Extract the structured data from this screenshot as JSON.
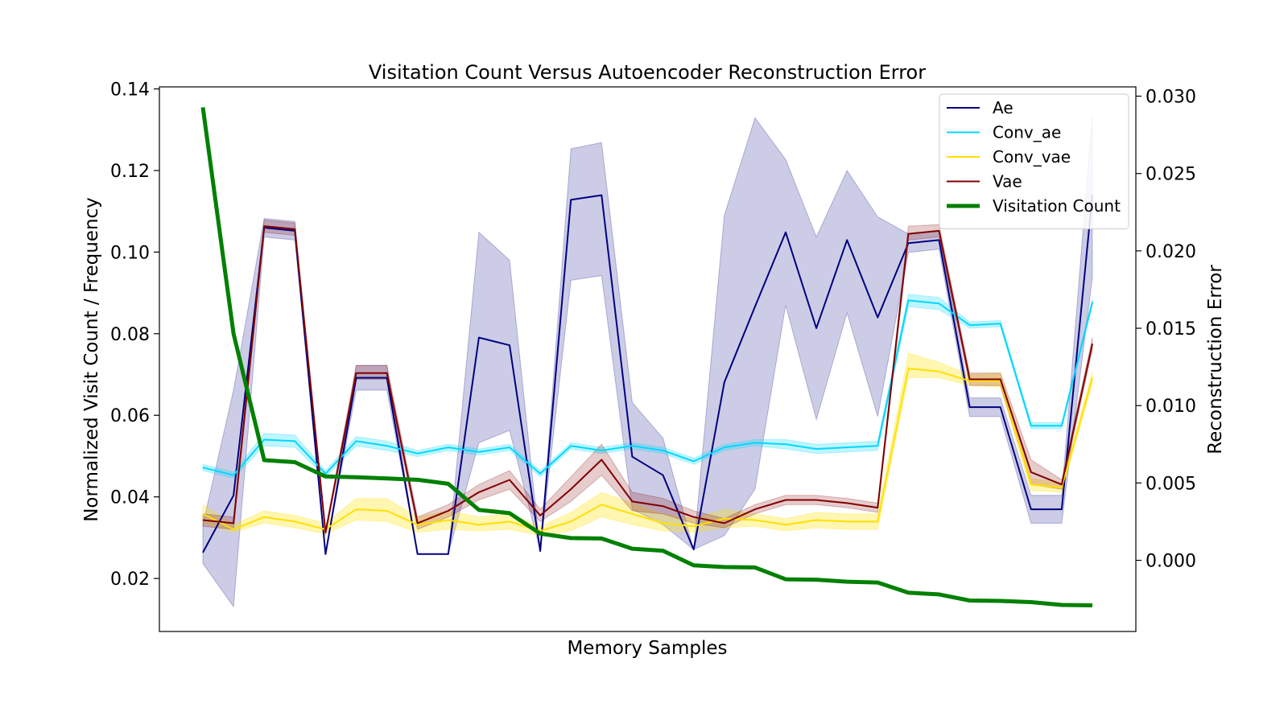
{
  "chart_data": {
    "type": "line",
    "title": "Visitation Count Versus Autoencoder Reconstruction Error",
    "xlabel": "Memory Samples",
    "ylabel_left": "Normalized Visit Count / Frequency",
    "ylabel_right": "Reconstruction Error",
    "ylabel_left_color": "#008000",
    "x": [
      1,
      2,
      3,
      4,
      5,
      6,
      7,
      8,
      9,
      10,
      11,
      12,
      13,
      14,
      15,
      16,
      17,
      18,
      19,
      20,
      21,
      22,
      23,
      24,
      25,
      26,
      27,
      28,
      29,
      30
    ],
    "ylim_left": [
      0.007,
      0.1405
    ],
    "ylim_right": [
      -0.0046,
      0.0306
    ],
    "yticks_left": [
      0.02,
      0.04,
      0.06,
      0.08,
      0.1,
      0.12,
      0.14
    ],
    "yticks_left_labels": [
      "0.02",
      "0.04",
      "0.06",
      "0.08",
      "0.10",
      "0.12",
      "0.14"
    ],
    "yticks_right": [
      0.0,
      0.005,
      0.01,
      0.015,
      0.02,
      0.025,
      0.03
    ],
    "yticks_right_labels": [
      "0.000",
      "0.005",
      "0.010",
      "0.015",
      "0.020",
      "0.025",
      "0.030"
    ],
    "grid": false,
    "legend": {
      "placement": "top-right",
      "entries": [
        "Ae",
        "Conv_ae",
        "Conv_vae",
        "Vae",
        "Visitation Count"
      ]
    },
    "series": [
      {
        "name": "Ae",
        "axis": "right",
        "color": "#000080",
        "band_color": "#000080",
        "band_opacity": 0.2,
        "line_width": 2,
        "values": [
          0.0005,
          0.0042,
          0.0215,
          0.0213,
          0.0004,
          0.0118,
          0.0118,
          0.0004,
          0.0004,
          0.0144,
          0.0139,
          0.0006,
          0.0233,
          0.0236,
          0.0067,
          0.0055,
          0.0007,
          0.0115,
          0.0164,
          0.0212,
          0.015,
          0.0207,
          0.0157,
          0.0205,
          0.0207,
          0.0099,
          0.0099,
          0.0033,
          0.0033,
          0.0236
        ],
        "lower": [
          -0.0002,
          -0.003,
          0.0209,
          0.0207,
          0.0004,
          0.011,
          0.011,
          0.0004,
          0.0004,
          0.0076,
          0.0084,
          0.0006,
          0.0181,
          0.0184,
          0.0033,
          0.0023,
          0.0007,
          0.0016,
          0.0046,
          0.0165,
          0.0091,
          0.016,
          0.0093,
          0.0199,
          0.0201,
          0.0093,
          0.0093,
          0.0024,
          0.0024,
          0.0183
        ],
        "upper": [
          0.0023,
          0.011,
          0.0221,
          0.0219,
          0.0004,
          0.0126,
          0.0126,
          0.0004,
          0.0004,
          0.0212,
          0.0194,
          0.0006,
          0.0266,
          0.027,
          0.0102,
          0.0079,
          0.0007,
          0.0223,
          0.0286,
          0.0259,
          0.0209,
          0.0252,
          0.0222,
          0.0211,
          0.0213,
          0.0105,
          0.0105,
          0.0042,
          0.0042,
          0.0288
        ]
      },
      {
        "name": "Conv_ae",
        "axis": "right",
        "color": "#00d8ff",
        "band_color": "#00d8ff",
        "band_opacity": 0.25,
        "line_width": 2,
        "values": [
          0.006,
          0.0055,
          0.0078,
          0.0077,
          0.0056,
          0.0077,
          0.0074,
          0.0069,
          0.0073,
          0.007,
          0.0073,
          0.0056,
          0.0074,
          0.0071,
          0.0074,
          0.0071,
          0.0064,
          0.0073,
          0.0076,
          0.0075,
          0.0072,
          0.0073,
          0.0074,
          0.0168,
          0.0166,
          0.0152,
          0.0153,
          0.0087,
          0.0087,
          0.0167
        ],
        "lower": [
          0.0058,
          0.0053,
          0.0074,
          0.0073,
          0.0054,
          0.0074,
          0.0071,
          0.0067,
          0.0071,
          0.0068,
          0.0071,
          0.0054,
          0.0072,
          0.0069,
          0.0072,
          0.0069,
          0.0062,
          0.0071,
          0.0074,
          0.0072,
          0.0069,
          0.007,
          0.0071,
          0.0164,
          0.0162,
          0.015,
          0.0151,
          0.0085,
          0.0085,
          0.0165
        ],
        "upper": [
          0.0062,
          0.0057,
          0.0082,
          0.0081,
          0.0058,
          0.008,
          0.0077,
          0.0071,
          0.0075,
          0.0072,
          0.0075,
          0.0058,
          0.0076,
          0.0073,
          0.0076,
          0.0073,
          0.0066,
          0.0075,
          0.0078,
          0.0078,
          0.0075,
          0.0076,
          0.0077,
          0.0172,
          0.017,
          0.0154,
          0.0155,
          0.0089,
          0.0089,
          0.0169
        ]
      },
      {
        "name": "Conv_vae",
        "axis": "right",
        "color": "#ffe000",
        "band_color": "#ffe000",
        "band_opacity": 0.3,
        "line_width": 2,
        "values": [
          0.003,
          0.002,
          0.0028,
          0.0025,
          0.002,
          0.0033,
          0.0032,
          0.0023,
          0.0026,
          0.0023,
          0.0025,
          0.0019,
          0.0025,
          0.0036,
          0.003,
          0.0024,
          0.0022,
          0.0027,
          0.0026,
          0.0023,
          0.0026,
          0.0025,
          0.0025,
          0.0124,
          0.0122,
          0.0116,
          0.0116,
          0.0049,
          0.0047,
          0.0118
        ],
        "lower": [
          0.0024,
          0.0018,
          0.0024,
          0.0021,
          0.0017,
          0.0026,
          0.0025,
          0.0018,
          0.002,
          0.0019,
          0.002,
          0.0016,
          0.0019,
          0.0028,
          0.0023,
          0.0019,
          0.0018,
          0.0021,
          0.0022,
          0.0019,
          0.0021,
          0.002,
          0.002,
          0.0118,
          0.0118,
          0.0113,
          0.0112,
          0.0045,
          0.0044,
          0.0114
        ],
        "upper": [
          0.0036,
          0.0023,
          0.0032,
          0.0029,
          0.0024,
          0.004,
          0.004,
          0.0028,
          0.0032,
          0.0028,
          0.003,
          0.0022,
          0.0031,
          0.0044,
          0.0037,
          0.003,
          0.0027,
          0.0033,
          0.003,
          0.0027,
          0.0031,
          0.003,
          0.003,
          0.0134,
          0.0128,
          0.012,
          0.0121,
          0.0053,
          0.005,
          0.0122
        ]
      },
      {
        "name": "Vae",
        "axis": "right",
        "color": "#800000",
        "band_color": "#800000",
        "band_opacity": 0.2,
        "line_width": 2,
        "values": [
          0.0026,
          0.0024,
          0.0216,
          0.0214,
          0.0018,
          0.0121,
          0.0121,
          0.0024,
          0.0032,
          0.0044,
          0.0052,
          0.0029,
          0.0046,
          0.0065,
          0.0038,
          0.0035,
          0.0028,
          0.0024,
          0.0033,
          0.0039,
          0.0039,
          0.0037,
          0.0034,
          0.0211,
          0.0213,
          0.0117,
          0.0117,
          0.0057,
          0.0049,
          0.014
        ],
        "lower": [
          0.0022,
          0.002,
          0.0212,
          0.021,
          0.0016,
          0.0117,
          0.0117,
          0.002,
          0.0028,
          0.0039,
          0.0046,
          0.0025,
          0.0038,
          0.0055,
          0.0032,
          0.003,
          0.0024,
          0.0021,
          0.003,
          0.0036,
          0.0036,
          0.0034,
          0.0031,
          0.0207,
          0.0209,
          0.0113,
          0.0113,
          0.0049,
          0.0046,
          0.0136
        ],
        "upper": [
          0.003,
          0.0028,
          0.022,
          0.0218,
          0.002,
          0.0126,
          0.0126,
          0.0028,
          0.0036,
          0.0049,
          0.0058,
          0.0033,
          0.0054,
          0.0075,
          0.0044,
          0.004,
          0.0032,
          0.0027,
          0.0036,
          0.0042,
          0.0042,
          0.004,
          0.0037,
          0.0216,
          0.0217,
          0.0121,
          0.0121,
          0.0065,
          0.0052,
          0.0144
        ]
      },
      {
        "name": "Visitation Count",
        "axis": "left",
        "color": "#008000",
        "line_width": 5,
        "values": [
          0.1355,
          0.08,
          0.049,
          0.0485,
          0.045,
          0.0448,
          0.0445,
          0.0442,
          0.0432,
          0.0368,
          0.036,
          0.031,
          0.0299,
          0.0298,
          0.0273,
          0.0268,
          0.0232,
          0.0228,
          0.0227,
          0.0198,
          0.0197,
          0.0192,
          0.019,
          0.0165,
          0.0161,
          0.0146,
          0.0145,
          0.0142,
          0.0135,
          0.0134
        ]
      }
    ]
  }
}
